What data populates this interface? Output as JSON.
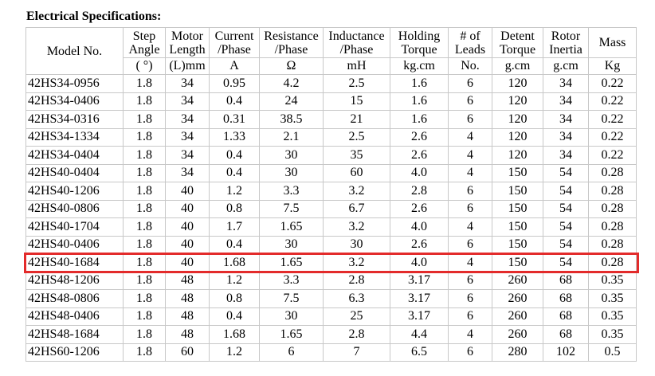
{
  "title": "Electrical Specifications:",
  "headers": [
    {
      "line1": "Model No.",
      "line2": "",
      "unit": ""
    },
    {
      "line1": "Step",
      "line2": "Angle",
      "unit": "( °)"
    },
    {
      "line1": "Motor",
      "line2": "Length",
      "unit": "(L)mm"
    },
    {
      "line1": "Current",
      "line2": "/Phase",
      "unit": "A"
    },
    {
      "line1": "Resistance",
      "line2": "/Phase",
      "unit": "Ω"
    },
    {
      "line1": "Inductance",
      "line2": "/Phase",
      "unit": "mH"
    },
    {
      "line1": "Holding",
      "line2": "Torque",
      "unit": "kg.cm"
    },
    {
      "line1": "# of",
      "line2": "Leads",
      "unit": "No."
    },
    {
      "line1": "Detent",
      "line2": "Torque",
      "unit": "g.cm"
    },
    {
      "line1": "Rotor",
      "line2": "Inertia",
      "unit": "g.cm"
    },
    {
      "line1": "Mass",
      "line2": "",
      "unit": "Kg"
    }
  ],
  "rows": [
    [
      "42HS34-0956",
      "1.8",
      "34",
      "0.95",
      "4.2",
      "2.5",
      "1.6",
      "6",
      "120",
      "34",
      "0.22"
    ],
    [
      "42HS34-0406",
      "1.8",
      "34",
      "0.4",
      "24",
      "15",
      "1.6",
      "6",
      "120",
      "34",
      "0.22"
    ],
    [
      "42HS34-0316",
      "1.8",
      "34",
      "0.31",
      "38.5",
      "21",
      "1.6",
      "6",
      "120",
      "34",
      "0.22"
    ],
    [
      "42HS34-1334",
      "1.8",
      "34",
      "1.33",
      "2.1",
      "2.5",
      "2.6",
      "4",
      "120",
      "34",
      "0.22"
    ],
    [
      "42HS34-0404",
      "1.8",
      "34",
      "0.4",
      "30",
      "35",
      "2.6",
      "4",
      "120",
      "34",
      "0.22"
    ],
    [
      "42HS40-0404",
      "1.8",
      "34",
      "0.4",
      "30",
      "60",
      "4.0",
      "4",
      "150",
      "54",
      "0.28"
    ],
    [
      "42HS40-1206",
      "1.8",
      "40",
      "1.2",
      "3.3",
      "3.2",
      "2.8",
      "6",
      "150",
      "54",
      "0.28"
    ],
    [
      "42HS40-0806",
      "1.8",
      "40",
      "0.8",
      "7.5",
      "6.7",
      "2.6",
      "6",
      "150",
      "54",
      "0.28"
    ],
    [
      "42HS40-1704",
      "1.8",
      "40",
      "1.7",
      "1.65",
      "3.2",
      "4.0",
      "4",
      "150",
      "54",
      "0.28"
    ],
    [
      "42HS40-0406",
      "1.8",
      "40",
      "0.4",
      "30",
      "30",
      "2.6",
      "6",
      "150",
      "54",
      "0.28"
    ],
    [
      "42HS40-1684",
      "1.8",
      "40",
      "1.68",
      "1.65",
      "3.2",
      "4.0",
      "4",
      "150",
      "54",
      "0.28"
    ],
    [
      "42HS48-1206",
      "1.8",
      "48",
      "1.2",
      "3.3",
      "2.8",
      "3.17",
      "6",
      "260",
      "68",
      "0.35"
    ],
    [
      "42HS48-0806",
      "1.8",
      "48",
      "0.8",
      "7.5",
      "6.3",
      "3.17",
      "6",
      "260",
      "68",
      "0.35"
    ],
    [
      "42HS48-0406",
      "1.8",
      "48",
      "0.4",
      "30",
      "25",
      "3.17",
      "6",
      "260",
      "68",
      "0.35"
    ],
    [
      "42HS48-1684",
      "1.8",
      "48",
      "1.68",
      "1.65",
      "2.8",
      "4.4",
      "4",
      "260",
      "68",
      "0.35"
    ],
    [
      "42HS60-1206",
      "1.8",
      "60",
      "1.2",
      "6",
      "7",
      "6.5",
      "6",
      "280",
      "102",
      "0.5"
    ]
  ],
  "highlight": {
    "row_index": 10,
    "color": "#e32b2b"
  }
}
